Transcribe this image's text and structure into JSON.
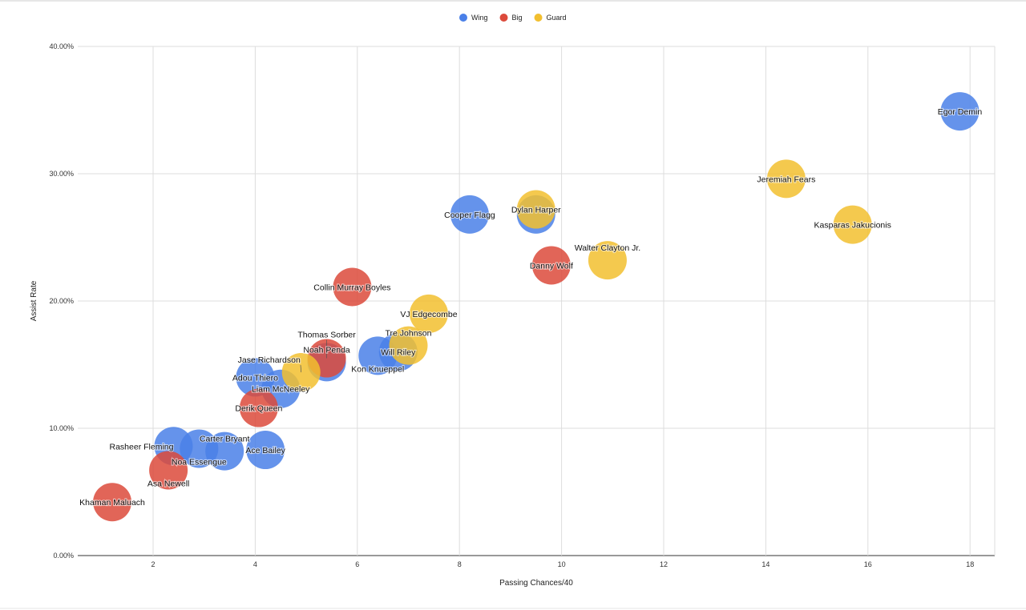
{
  "chart_data": {
    "type": "bubble",
    "title": "",
    "xlabel": "Passing Chances/40",
    "ylabel": "Assist Rate",
    "xlim": [
      0.5,
      18.5
    ],
    "ylim": [
      0,
      40
    ],
    "xticks": [
      2,
      4,
      6,
      8,
      10,
      12,
      14,
      16,
      18
    ],
    "yticks": [
      0,
      10,
      20,
      30,
      40
    ],
    "ytick_labels": [
      "0.00%",
      "10.00%",
      "20.00%",
      "30.00%",
      "40.00%"
    ],
    "grid": true,
    "legend_position": "top",
    "colors": {
      "Wing": "#4a80e8",
      "Big": "#dc4a3b",
      "Guard": "#f2bf2f"
    },
    "series": [
      {
        "name": "Wing",
        "points": [
          {
            "label": "Egor Demin",
            "x": 17.8,
            "y": 34.9
          },
          {
            "label": "Cooper Flagg",
            "x": 8.2,
            "y": 26.8
          },
          {
            "label": "",
            "x": 9.5,
            "y": 26.8
          },
          {
            "label": "Will Riley",
            "x": 6.8,
            "y": 16.0
          },
          {
            "label": "Kon Knueppel",
            "x": 6.4,
            "y": 15.7
          },
          {
            "label": "Noah Penda",
            "x": 5.4,
            "y": 15.2
          },
          {
            "label": "Adou Thiero",
            "x": 4.0,
            "y": 14.0
          },
          {
            "label": "Liam McNeeley",
            "x": 4.5,
            "y": 13.1
          },
          {
            "label": "Ace Bailey",
            "x": 4.2,
            "y": 8.3
          },
          {
            "label": "Carter Bryant",
            "x": 3.4,
            "y": 8.2
          },
          {
            "label": "Noa Essengue",
            "x": 2.9,
            "y": 8.4
          },
          {
            "label": "Rasheer Fleming",
            "x": 2.4,
            "y": 8.6
          }
        ]
      },
      {
        "name": "Big",
        "points": [
          {
            "label": "Danny Wolf",
            "x": 9.8,
            "y": 22.8
          },
          {
            "label": "Collin Murray Boyles",
            "x": 5.9,
            "y": 21.1
          },
          {
            "label": "Thomas Sorber",
            "x": 5.4,
            "y": 15.5
          },
          {
            "label": "Derik Queen",
            "x": 4.07,
            "y": 11.6
          },
          {
            "label": "Asa Newell",
            "x": 2.3,
            "y": 6.7
          },
          {
            "label": "Khaman Maluach",
            "x": 1.2,
            "y": 4.2
          }
        ]
      },
      {
        "name": "Guard",
        "points": [
          {
            "label": "Jeremiah Fears",
            "x": 14.4,
            "y": 29.6
          },
          {
            "label": "Kasparas Jakucionis",
            "x": 15.7,
            "y": 26.0
          },
          {
            "label": "Dylan Harper",
            "x": 9.5,
            "y": 27.2
          },
          {
            "label": "Walter Clayton Jr.",
            "x": 10.9,
            "y": 23.2
          },
          {
            "label": "VJ Edgecombe",
            "x": 7.4,
            "y": 19.0
          },
          {
            "label": "Tre Johnson",
            "x": 7.0,
            "y": 16.5
          },
          {
            "label": "Jase Richardson",
            "x": 4.9,
            "y": 14.4
          }
        ]
      }
    ]
  }
}
